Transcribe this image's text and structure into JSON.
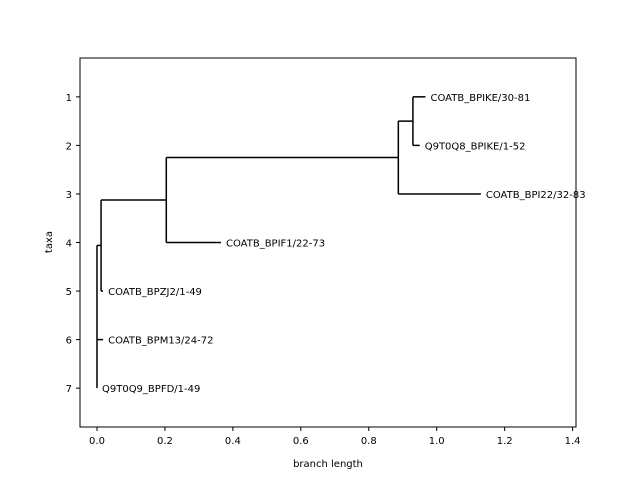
{
  "chart_data": {
    "type": "tree",
    "title": "",
    "xlabel": "branch length",
    "ylabel": "taxa",
    "xlim": [
      -0.05,
      1.41
    ],
    "ylim": [
      7.8,
      0.2
    ],
    "xticks": [
      0.0,
      0.2,
      0.4,
      0.6,
      0.8,
      1.0,
      1.2,
      1.4
    ],
    "xtick_labels": [
      "0.0",
      "0.2",
      "0.4",
      "0.6",
      "0.8",
      "1.0",
      "1.2",
      "1.4"
    ],
    "yticks": [
      1,
      2,
      3,
      4,
      5,
      6,
      7
    ],
    "ytick_labels": [
      "1",
      "2",
      "3",
      "4",
      "5",
      "6",
      "7"
    ],
    "grid": false,
    "leaves": [
      {
        "id": "L1",
        "label": "COATB_BPIKE/30-81",
        "x": 0.967,
        "y": 1
      },
      {
        "id": "L2",
        "label": "Q9T0Q8_BPIKE/1-52",
        "x": 0.95,
        "y": 2
      },
      {
        "id": "L3",
        "label": "COATB_BPI22/32-83",
        "x": 1.13,
        "y": 3
      },
      {
        "id": "L4",
        "label": "COATB_BPIF1/22-73",
        "x": 0.365,
        "y": 4
      },
      {
        "id": "L5",
        "label": "COATB_BPZJ2/1-49",
        "x": 0.018,
        "y": 5
      },
      {
        "id": "L6",
        "label": "COATB_BPM13/24-72",
        "x": 0.018,
        "y": 6
      },
      {
        "id": "L7",
        "label": "Q9T0Q9_BPFD/1-49",
        "x": 0.0,
        "y": 7
      }
    ],
    "internal_nodes": [
      {
        "id": "N1",
        "x": 0.93,
        "y": 1.5,
        "children": [
          "L1",
          "L2"
        ]
      },
      {
        "id": "N2",
        "x": 0.887,
        "y": 2.25,
        "children": [
          "N1",
          "L3"
        ]
      },
      {
        "id": "N3",
        "x": 0.204,
        "y": 3.125,
        "children": [
          "N2",
          "L4"
        ]
      },
      {
        "id": "N4",
        "x": 0.012,
        "y": 4.06,
        "children": [
          "N3",
          "L5"
        ]
      },
      {
        "id": "N5",
        "x": 0.0,
        "y": 5.53,
        "children": [
          "N4",
          "L6",
          "L7"
        ]
      }
    ]
  }
}
